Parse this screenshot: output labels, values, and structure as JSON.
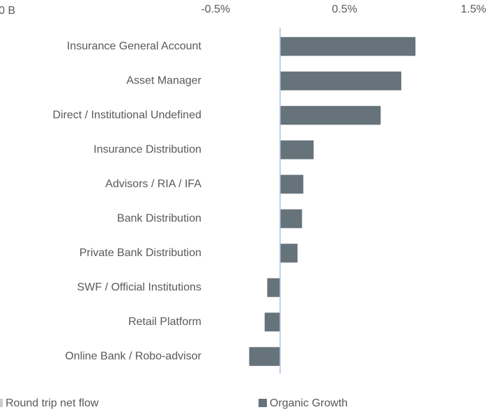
{
  "chart_data": {
    "type": "bar",
    "orientation": "horizontal",
    "annotations": [
      "0 B"
    ],
    "categories": [
      "Insurance General Account",
      "Asset Manager",
      "Direct / Institutional Undefined",
      "Insurance Distribution",
      "Advisors / RIA / IFA",
      "Bank Distribution",
      "Private Bank Distribution",
      "SWF / Official Institutions",
      "Retail Platform",
      "Online Bank / Robo-advisor"
    ],
    "series": [
      {
        "name": "Round trip net flow",
        "color": "#c9cdd0",
        "values": [
          null,
          null,
          null,
          null,
          null,
          null,
          null,
          null,
          null,
          null
        ]
      },
      {
        "name": "Organic Growth",
        "color": "#67737b",
        "values": [
          1.05,
          0.94,
          0.78,
          0.26,
          0.18,
          0.17,
          0.135,
          -0.1,
          -0.12,
          -0.24
        ]
      }
    ],
    "xlim": [
      -0.5,
      1.5
    ],
    "xticks": [
      {
        "value": -0.5,
        "label": "-0.5%"
      },
      {
        "value": 0.5,
        "label": "0.5%"
      },
      {
        "value": 1.5,
        "label": "1.5%"
      }
    ]
  }
}
